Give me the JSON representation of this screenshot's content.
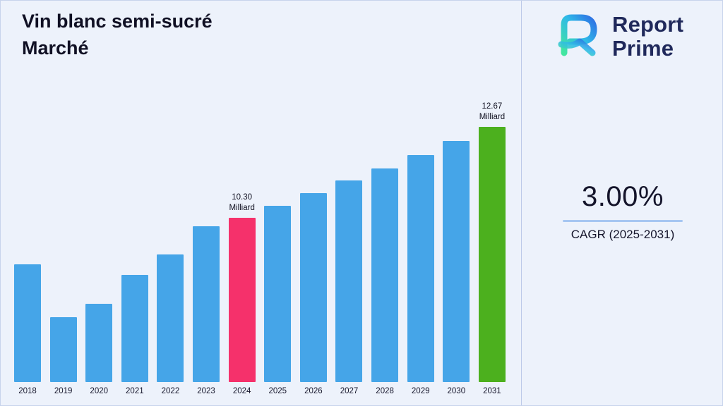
{
  "page": {
    "background": "#EDF2FB",
    "divider_color": "#BDCAE8"
  },
  "title": {
    "line1": "Vin blanc semi-sucré",
    "line2": "Marché"
  },
  "logo": {
    "line1": "Report",
    "line2": "Prime",
    "text_color": "#20295B",
    "icon_gradient_start": "#43E6A0",
    "icon_gradient_end": "#2F6FE4"
  },
  "stats": {
    "value": "3.00%",
    "label": "CAGR (2025-2031)",
    "underline_color": "#A6C6F2"
  },
  "chart_data": {
    "type": "bar",
    "title": "Vin blanc semi-sucré Marché",
    "unit": "Milliard",
    "categories": [
      "2018",
      "2019",
      "2020",
      "2021",
      "2022",
      "2023",
      "2024",
      "2025",
      "2026",
      "2027",
      "2028",
      "2029",
      "2030",
      "2031"
    ],
    "values": [
      9.08,
      7.7,
      8.05,
      8.8,
      9.33,
      10.08,
      10.3,
      10.61,
      10.93,
      11.26,
      11.59,
      11.94,
      12.3,
      12.67
    ],
    "bar_color": "#45A5E8",
    "highlight_colors": {
      "2024": "#F5316B",
      "2031": "#4CB01E"
    },
    "annotations": [
      {
        "category": "2024",
        "lines": [
          "10.30",
          "Milliard"
        ]
      },
      {
        "category": "2031",
        "lines": [
          "12.67",
          "Milliard"
        ]
      }
    ],
    "ylim": [
      6,
      13
    ],
    "grid": false,
    "legend": "none",
    "xlabel": "",
    "ylabel": ""
  }
}
